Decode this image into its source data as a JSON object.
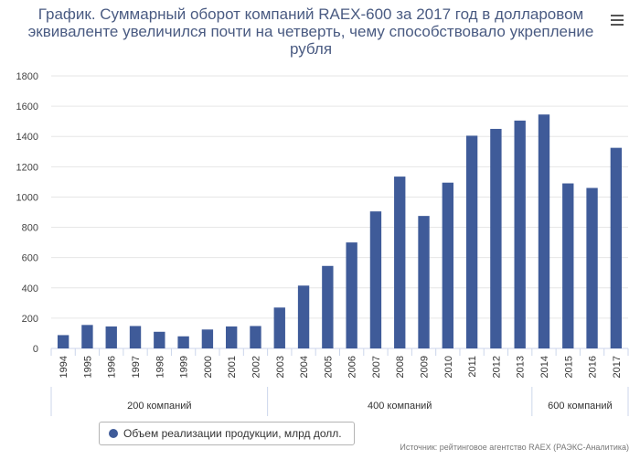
{
  "chart_data": {
    "type": "bar",
    "title": "График. Суммарный оборот компаний RAEX-600 за 2017 год в долларовом эквиваленте увеличился почти на четверть, чему способствовало укрепление рубля",
    "categories": [
      "1994",
      "1995",
      "1996",
      "1997",
      "1998",
      "1999",
      "2000",
      "2001",
      "2002",
      "2003",
      "2004",
      "2005",
      "2006",
      "2007",
      "2008",
      "2009",
      "2010",
      "2011",
      "2012",
      "2013",
      "2014",
      "2015",
      "2016",
      "2017"
    ],
    "series": [
      {
        "name": "Объем реализации продукции, млрд долл.",
        "color": "#3f5b99",
        "values": [
          88,
          155,
          145,
          148,
          110,
          80,
          125,
          145,
          148,
          270,
          415,
          545,
          700,
          905,
          1135,
          875,
          1095,
          1405,
          1450,
          1505,
          1545,
          1090,
          1060,
          1325
        ]
      }
    ],
    "ylim": [
      0,
      1800
    ],
    "yticks": [
      0,
      200,
      400,
      600,
      800,
      1000,
      1200,
      1400,
      1600,
      1800
    ],
    "grid": true,
    "groups": [
      {
        "label": "200 компаний",
        "from": "1994",
        "to": "2002"
      },
      {
        "label": "400 компаний",
        "from": "2003",
        "to": "2013"
      },
      {
        "label": "600 компаний",
        "from": "2014",
        "to": "2017"
      }
    ],
    "legend_position": "bottom-left"
  },
  "source_note": "Источник: рейтинговое агентство RAEX (РАЭКС-Аналитика)",
  "menu_icon": "hamburger-menu-icon",
  "colors": {
    "bar": "#3f5b99",
    "title": "#4a5b82",
    "grid": "#e6e6e6",
    "axis": "#ccd6eb"
  }
}
